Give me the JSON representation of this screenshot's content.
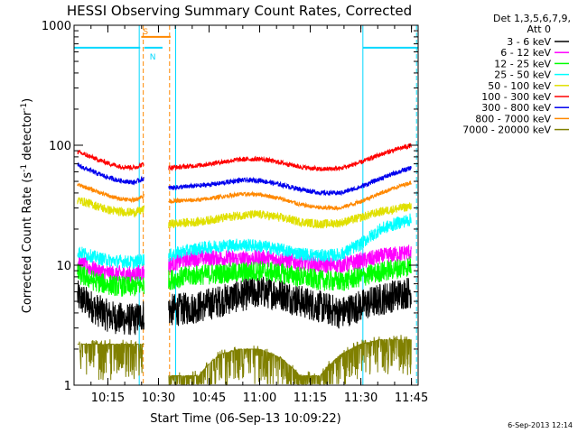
{
  "chart_data": {
    "type": "line",
    "title": "HESSI Observing Summary Count Rates, Corrected",
    "xlabel": "Start Time (06-Sep-13 10:09:22)",
    "ylabel_main": "Corrected Count Rate (s",
    "ylabel_sup1": "-1",
    "ylabel_mid": " detector",
    "ylabel_sup2": "-1",
    "ylabel_end": ")",
    "yscale": "log",
    "xlim_minutes": [
      10.083,
      11.783
    ],
    "ylim": [
      1,
      1000
    ],
    "xtick_values": [
      10.25,
      10.5,
      10.75,
      11.0,
      11.25,
      11.5,
      11.75
    ],
    "xtick_labels": [
      "10:15",
      "10:30",
      "10:45",
      "11:00",
      "11:15",
      "11:30",
      "11:45"
    ],
    "ytick_values": [
      1,
      10,
      100,
      1000
    ],
    "ytick_labels": [
      "1",
      "10",
      "100",
      "1000"
    ],
    "legend_header": [
      "Det 1,3,5,6,7,9,",
      "Att 0"
    ],
    "series": [
      {
        "name": "3 - 6 keV",
        "color": "#000000",
        "values": [
          [
            10.1,
            5.5
          ],
          [
            10.15,
            4.8
          ],
          [
            10.2,
            4.2
          ],
          [
            10.25,
            3.8
          ],
          [
            10.3,
            3.6
          ],
          [
            10.38,
            3.5
          ],
          [
            10.43,
            3.9
          ],
          [
            10.55,
            4.2
          ],
          [
            10.62,
            4.3
          ],
          [
            10.7,
            4.5
          ],
          [
            10.8,
            5.0
          ],
          [
            10.9,
            5.6
          ],
          [
            11.0,
            6.0
          ],
          [
            11.1,
            5.8
          ],
          [
            11.2,
            5.0
          ],
          [
            11.3,
            4.5
          ],
          [
            11.4,
            4.0
          ],
          [
            11.5,
            4.6
          ],
          [
            11.6,
            5.2
          ],
          [
            11.7,
            5.8
          ],
          [
            11.75,
            6.0
          ]
        ]
      },
      {
        "name": "6 - 12 keV",
        "color": "#ff00ff",
        "values": [
          [
            10.1,
            10.5
          ],
          [
            10.15,
            9.7
          ],
          [
            10.2,
            9.0
          ],
          [
            10.25,
            8.6
          ],
          [
            10.3,
            8.5
          ],
          [
            10.38,
            8.4
          ],
          [
            10.43,
            8.8
          ],
          [
            10.55,
            10.0
          ],
          [
            10.62,
            11.0
          ],
          [
            10.7,
            11.5
          ],
          [
            10.8,
            11.5
          ],
          [
            10.9,
            11.2
          ],
          [
            11.0,
            11.5
          ],
          [
            11.1,
            11.2
          ],
          [
            11.2,
            10.5
          ],
          [
            11.3,
            10.0
          ],
          [
            11.4,
            10.0
          ],
          [
            11.5,
            10.8
          ],
          [
            11.6,
            11.8
          ],
          [
            11.7,
            12.5
          ],
          [
            11.75,
            13.0
          ]
        ]
      },
      {
        "name": "12 - 25 keV",
        "color": "#00ff00",
        "values": [
          [
            10.1,
            8.5
          ],
          [
            10.15,
            7.8
          ],
          [
            10.2,
            7.2
          ],
          [
            10.25,
            6.9
          ],
          [
            10.3,
            6.7
          ],
          [
            10.38,
            6.6
          ],
          [
            10.43,
            7.0
          ],
          [
            10.55,
            7.5
          ],
          [
            10.62,
            8.0
          ],
          [
            10.7,
            8.3
          ],
          [
            10.8,
            8.5
          ],
          [
            10.9,
            8.7
          ],
          [
            11.0,
            9.0
          ],
          [
            11.1,
            8.6
          ],
          [
            11.2,
            8.0
          ],
          [
            11.3,
            7.5
          ],
          [
            11.4,
            7.3
          ],
          [
            11.5,
            8.0
          ],
          [
            11.6,
            8.8
          ],
          [
            11.7,
            9.5
          ],
          [
            11.75,
            10.0
          ]
        ]
      },
      {
        "name": "25 - 50 keV",
        "color": "#00ffff",
        "values": [
          [
            10.1,
            13.0
          ],
          [
            10.15,
            12.2
          ],
          [
            10.2,
            11.5
          ],
          [
            10.25,
            11.0
          ],
          [
            10.3,
            10.8
          ],
          [
            10.38,
            10.6
          ],
          [
            10.43,
            11.2
          ],
          [
            10.55,
            12.0
          ],
          [
            10.62,
            13.0
          ],
          [
            10.7,
            13.8
          ],
          [
            10.8,
            14.5
          ],
          [
            10.9,
            14.8
          ],
          [
            11.0,
            14.5
          ],
          [
            11.1,
            13.5
          ],
          [
            11.2,
            12.5
          ],
          [
            11.3,
            12.0
          ],
          [
            11.4,
            12.2
          ],
          [
            11.5,
            15.0
          ],
          [
            11.6,
            20.0
          ],
          [
            11.7,
            23.0
          ],
          [
            11.75,
            24.0
          ]
        ]
      },
      {
        "name": "50 - 100 keV",
        "color": "#e0e000",
        "values": [
          [
            10.1,
            35.0
          ],
          [
            10.15,
            33.0
          ],
          [
            10.2,
            31.0
          ],
          [
            10.25,
            29.0
          ],
          [
            10.3,
            28.0
          ],
          [
            10.38,
            27.5
          ],
          [
            10.43,
            29.0
          ],
          [
            10.55,
            22.0
          ],
          [
            10.62,
            22.5
          ],
          [
            10.7,
            23.0
          ],
          [
            10.8,
            24.5
          ],
          [
            10.9,
            26.0
          ],
          [
            11.0,
            26.5
          ],
          [
            11.1,
            25.0
          ],
          [
            11.2,
            23.0
          ],
          [
            11.3,
            22.0
          ],
          [
            11.4,
            22.5
          ],
          [
            11.5,
            25.0
          ],
          [
            11.6,
            28.0
          ],
          [
            11.7,
            30.0
          ],
          [
            11.75,
            31.0
          ]
        ]
      },
      {
        "name": "100 - 300 keV",
        "color": "#ff0000",
        "values": [
          [
            10.1,
            88.0
          ],
          [
            10.15,
            82.0
          ],
          [
            10.2,
            76.0
          ],
          [
            10.25,
            71.0
          ],
          [
            10.3,
            67.0
          ],
          [
            10.38,
            65.0
          ],
          [
            10.43,
            70.0
          ],
          [
            10.55,
            65.0
          ],
          [
            10.62,
            66.0
          ],
          [
            10.7,
            68.0
          ],
          [
            10.8,
            72.0
          ],
          [
            10.9,
            76.0
          ],
          [
            11.0,
            77.0
          ],
          [
            11.1,
            72.0
          ],
          [
            11.2,
            66.0
          ],
          [
            11.3,
            63.0
          ],
          [
            11.4,
            64.0
          ],
          [
            11.5,
            72.0
          ],
          [
            11.6,
            84.0
          ],
          [
            11.7,
            95.0
          ],
          [
            11.75,
            100.0
          ]
        ]
      },
      {
        "name": "300 - 800 keV",
        "color": "#0000ee",
        "values": [
          [
            10.1,
            68.0
          ],
          [
            10.15,
            63.0
          ],
          [
            10.2,
            58.0
          ],
          [
            10.25,
            54.0
          ],
          [
            10.3,
            51.0
          ],
          [
            10.38,
            49.0
          ],
          [
            10.43,
            53.0
          ],
          [
            10.55,
            44.0
          ],
          [
            10.62,
            45.0
          ],
          [
            10.7,
            46.0
          ],
          [
            10.8,
            48.0
          ],
          [
            10.9,
            51.0
          ],
          [
            11.0,
            51.0
          ],
          [
            11.1,
            47.0
          ],
          [
            11.2,
            43.0
          ],
          [
            11.3,
            40.0
          ],
          [
            11.4,
            40.0
          ],
          [
            11.5,
            45.0
          ],
          [
            11.6,
            53.0
          ],
          [
            11.7,
            61.0
          ],
          [
            11.75,
            65.0
          ]
        ]
      },
      {
        "name": "800 - 7000 keV",
        "color": "#ff8800",
        "values": [
          [
            10.1,
            47.0
          ],
          [
            10.15,
            44.0
          ],
          [
            10.2,
            41.0
          ],
          [
            10.25,
            38.0
          ],
          [
            10.3,
            36.0
          ],
          [
            10.38,
            35.0
          ],
          [
            10.43,
            38.0
          ],
          [
            10.55,
            34.0
          ],
          [
            10.62,
            34.5
          ],
          [
            10.7,
            35.0
          ],
          [
            10.8,
            37.0
          ],
          [
            10.9,
            39.0
          ],
          [
            11.0,
            39.0
          ],
          [
            11.1,
            36.0
          ],
          [
            11.2,
            32.0
          ],
          [
            11.3,
            30.0
          ],
          [
            11.4,
            30.0
          ],
          [
            11.5,
            34.0
          ],
          [
            11.6,
            40.0
          ],
          [
            11.7,
            46.0
          ],
          [
            11.75,
            49.0
          ]
        ]
      },
      {
        "name": "7000 - 20000 keV",
        "color": "#808000",
        "values": [
          [
            10.1,
            2.2
          ],
          [
            10.2,
            2.2
          ],
          [
            10.3,
            2.2
          ],
          [
            10.38,
            2.2
          ],
          [
            10.43,
            2.2
          ],
          [
            10.55,
            1.2
          ],
          [
            10.7,
            1.2
          ],
          [
            10.8,
            1.8
          ],
          [
            10.9,
            2.0
          ],
          [
            11.0,
            2.0
          ],
          [
            11.1,
            1.7
          ],
          [
            11.2,
            1.2
          ],
          [
            11.3,
            1.2
          ],
          [
            11.4,
            1.8
          ],
          [
            11.5,
            2.2
          ],
          [
            11.6,
            2.4
          ],
          [
            11.7,
            2.4
          ],
          [
            11.75,
            2.4
          ]
        ]
      }
    ],
    "segments": [
      {
        "label": "",
        "color": "#00d8ff",
        "x0": 10.083,
        "x1": 10.41,
        "y": 650
      },
      {
        "label": "S",
        "color": "#ff8800",
        "x0": 10.415,
        "x1": 10.56,
        "y": 800
      },
      {
        "label": "N",
        "color": "#00d8ff",
        "x0": 10.43,
        "x1": 10.52,
        "y": 650
      },
      {
        "label": "",
        "color": "#00d8ff",
        "x0": 11.51,
        "x1": 11.783,
        "y": 650
      }
    ],
    "vlines": [
      {
        "x": 10.405,
        "color": "#00d8ff",
        "dash": false
      },
      {
        "x": 10.425,
        "color": "#ff8800",
        "dash": true
      },
      {
        "x": 10.555,
        "color": "#ff8800",
        "dash": true
      },
      {
        "x": 10.585,
        "color": "#00d8ff",
        "dash": false
      },
      {
        "x": 11.51,
        "color": "#00d8ff",
        "dash": false
      },
      {
        "x": 11.775,
        "color": "#00d8ff",
        "dash": true
      }
    ],
    "gaps": [
      [
        10.44,
        10.54
      ]
    ],
    "timestamp": "6-Sep-2013 12:14"
  }
}
